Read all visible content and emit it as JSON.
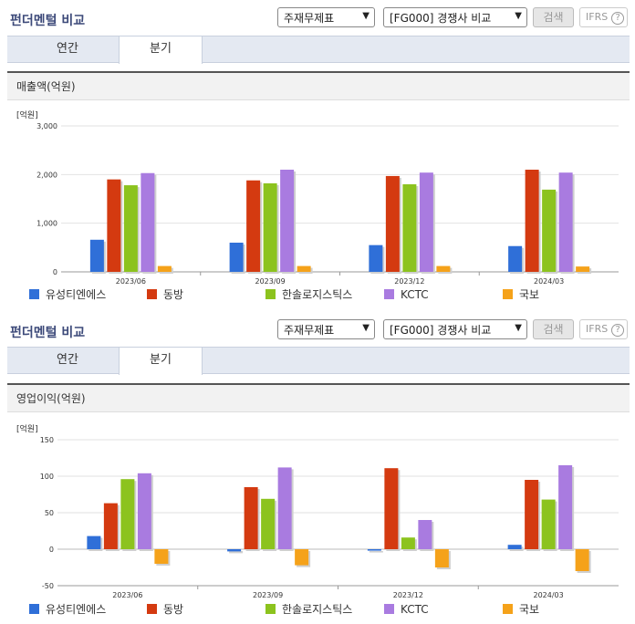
{
  "panels": [
    {
      "title": "펀더멘털 비교",
      "select1": "주재무제표",
      "select2": "[FG000] 경쟁사 비교",
      "search_label": "검색",
      "ifrs_label": "IFRS",
      "tabs": [
        "연간",
        "분기"
      ],
      "active_tab": 1,
      "chart_title": "매출액(억원)"
    },
    {
      "title": "펀더멘털 비교",
      "select1": "주재무제표",
      "select2": "[FG000] 경쟁사 비교",
      "search_label": "검색",
      "ifrs_label": "IFRS",
      "tabs": [
        "연간",
        "분기"
      ],
      "active_tab": 1,
      "chart_title": "영업이익(억원)"
    }
  ],
  "colors": [
    "#2f6fd8",
    "#d43a10",
    "#8cc31e",
    "#a97be0",
    "#f5a21a"
  ],
  "chart_data": [
    {
      "type": "bar",
      "title": "매출액(억원)",
      "unit_label": "[억원]",
      "categories": [
        "2023/06",
        "2023/09",
        "2023/12",
        "2024/03"
      ],
      "ylim": [
        0,
        3000
      ],
      "yticks": [
        0,
        1000,
        2000,
        3000
      ],
      "ytick_labels": [
        "0",
        "1,000",
        "2,000",
        "3,000"
      ],
      "legend": "bottom",
      "series": [
        {
          "name": "유성티엔에스",
          "values": [
            660,
            600,
            550,
            530
          ]
        },
        {
          "name": "동방",
          "values": [
            1900,
            1880,
            1970,
            2100
          ]
        },
        {
          "name": "한솔로지스틱스",
          "values": [
            1780,
            1820,
            1800,
            1690
          ]
        },
        {
          "name": "KCTC",
          "values": [
            2030,
            2100,
            2040,
            2040
          ]
        },
        {
          "name": "국보",
          "values": [
            120,
            120,
            120,
            110
          ]
        }
      ]
    },
    {
      "type": "bar",
      "title": "영업이익(억원)",
      "unit_label": "[억원]",
      "categories": [
        "2023/06",
        "2023/09",
        "2023/12",
        "2024/03"
      ],
      "ylim": [
        -50,
        150
      ],
      "yticks": [
        -50,
        0,
        50,
        100,
        150
      ],
      "ytick_labels": [
        "-50",
        "0",
        "50",
        "100",
        "150"
      ],
      "legend": "bottom",
      "series": [
        {
          "name": "유성티엔에스",
          "values": [
            18,
            -3,
            -2,
            6
          ]
        },
        {
          "name": "동방",
          "values": [
            63,
            85,
            111,
            95
          ]
        },
        {
          "name": "한솔로지스틱스",
          "values": [
            96,
            69,
            16,
            68
          ]
        },
        {
          "name": "KCTC",
          "values": [
            104,
            112,
            40,
            115
          ]
        },
        {
          "name": "국보",
          "values": [
            -20,
            -22,
            -25,
            -30
          ]
        }
      ]
    }
  ]
}
